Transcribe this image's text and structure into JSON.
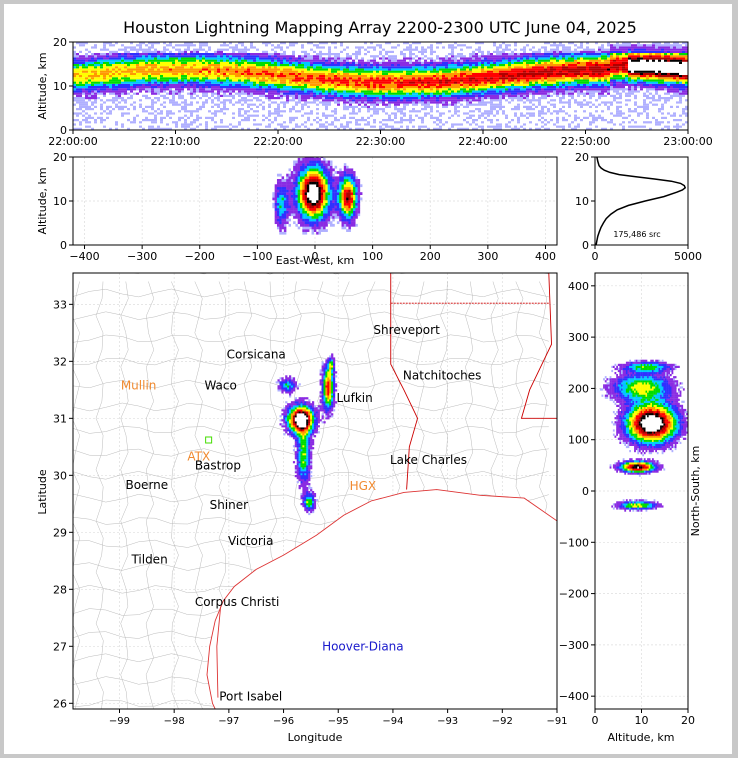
{
  "title": "Houston Lightning Mapping Array 2200-2300 UTC June 04, 2025",
  "colors": {
    "border": "#c8c8c8",
    "state_lines": "#cc0000",
    "county_lines": "#bbbbbb",
    "coast": "#dd3333",
    "orange_label": "#f08a30",
    "blue_label": "#1a1acc",
    "green_marker": "#44dd00"
  },
  "chart_data": [
    {
      "id": "time_height",
      "type": "heatmap",
      "ylabel": "Altitude, km",
      "ylim": [
        0,
        20
      ],
      "yticks": [
        "0",
        "10",
        "20"
      ],
      "xlim_minutes": [
        0,
        60
      ],
      "xticks": [
        "22:00:00",
        "22:10:00",
        "22:20:00",
        "22:30:00",
        "22:40:00",
        "22:50:00",
        "23:00:00"
      ]
    },
    {
      "id": "ew_altitude",
      "type": "heatmap",
      "xlabel": "East-West, km",
      "ylabel": "Altitude, km",
      "xlim": [
        -420,
        420
      ],
      "ylim": [
        0,
        20
      ],
      "xticks": [
        "−400",
        "−300",
        "−200",
        "−100",
        "0",
        "100",
        "200",
        "300",
        "400"
      ],
      "yticks": [
        "0",
        "10",
        "20"
      ]
    },
    {
      "id": "altitude_histogram",
      "type": "line",
      "xlim": [
        0,
        5000
      ],
      "ylim": [
        0,
        20
      ],
      "xticks": [
        "0",
        "5000"
      ],
      "yticks": [
        "0",
        "10",
        "20"
      ],
      "annotation": "175,486 src",
      "series": [
        {
          "x": [
            60,
            100,
            150,
            230,
            320,
            450,
            600,
            850,
            1200,
            1800,
            2700,
            3700,
            4400,
            4700,
            4850,
            4800,
            4600,
            4100,
            3200,
            2200,
            1300,
            800,
            500,
            330,
            220,
            150,
            100
          ],
          "y": [
            0,
            1,
            2,
            3,
            4,
            5,
            6,
            7,
            8,
            9,
            10,
            11,
            12,
            12.5,
            13,
            13.5,
            14,
            14.5,
            15,
            15.5,
            16,
            16.5,
            17,
            17.5,
            18,
            19,
            20
          ]
        }
      ]
    },
    {
      "id": "plan_view",
      "type": "scatter",
      "xlabel": "Longitude",
      "ylabel": "Latitude",
      "xlim": [
        -99.85,
        -91
      ],
      "ylim": [
        25.9,
        33.55
      ],
      "xticks": [
        "−99",
        "−98",
        "−97",
        "−96",
        "−95",
        "−94",
        "−93",
        "−92",
        "−91"
      ],
      "yticks": [
        "26",
        "27",
        "28",
        "29",
        "30",
        "31",
        "32",
        "33"
      ],
      "cities": [
        {
          "name": "Shreveport",
          "lon": -93.75,
          "lat": 32.55,
          "color": "#000000"
        },
        {
          "name": "Corsicana",
          "lon": -96.5,
          "lat": 32.12,
          "color": "#000000"
        },
        {
          "name": "Natchitoches",
          "lon": -93.1,
          "lat": 31.75,
          "color": "#000000"
        },
        {
          "name": "Mullin",
          "lon": -98.65,
          "lat": 31.58,
          "color": "#f08a30"
        },
        {
          "name": "Waco",
          "lon": -97.15,
          "lat": 31.58,
          "color": "#000000"
        },
        {
          "name": "Lufkin",
          "lon": -94.7,
          "lat": 31.36,
          "color": "#000000"
        },
        {
          "name": "ATX",
          "lon": -97.55,
          "lat": 30.33,
          "color": "#f08a30"
        },
        {
          "name": "Bastrop",
          "lon": -97.2,
          "lat": 30.17,
          "color": "#000000"
        },
        {
          "name": "Lake Charles",
          "lon": -93.35,
          "lat": 30.27,
          "color": "#000000"
        },
        {
          "name": "Boerne",
          "lon": -98.5,
          "lat": 29.83,
          "color": "#000000"
        },
        {
          "name": "HGX",
          "lon": -94.55,
          "lat": 29.81,
          "color": "#f08a30"
        },
        {
          "name": "Shiner",
          "lon": -97.0,
          "lat": 29.48,
          "color": "#000000"
        },
        {
          "name": "Victoria",
          "lon": -96.6,
          "lat": 28.85,
          "color": "#000000"
        },
        {
          "name": "Tilden",
          "lon": -98.45,
          "lat": 28.52,
          "color": "#000000"
        },
        {
          "name": "Corpus Christi",
          "lon": -96.85,
          "lat": 27.78,
          "color": "#000000"
        },
        {
          "name": "Hoover-Diana",
          "lon": -94.55,
          "lat": 27.0,
          "color": "#1a1acc"
        },
        {
          "name": "Port Isabel",
          "lon": -96.6,
          "lat": 26.12,
          "color": "#000000"
        }
      ]
    },
    {
      "id": "altitude_ns",
      "type": "heatmap",
      "xlabel": "Altitude, km",
      "ylabel": "North-South, km",
      "xlim": [
        0,
        20
      ],
      "ylim": [
        -425,
        425
      ],
      "xticks": [
        "0",
        "10",
        "20"
      ],
      "yticks": [
        "−400",
        "−300",
        "−200",
        "−100",
        "0",
        "100",
        "200",
        "300",
        "400"
      ]
    }
  ]
}
